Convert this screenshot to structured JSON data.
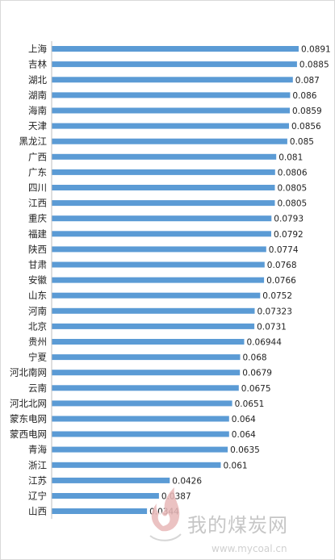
{
  "chart_data": {
    "type": "bar",
    "orientation": "horizontal",
    "categories": [
      "上海",
      "吉林",
      "湖北",
      "湖南",
      "海南",
      "天津",
      "黑龙江",
      "广西",
      "广东",
      "四川",
      "江西",
      "重庆",
      "福建",
      "陕西",
      "甘肃",
      "安徽",
      "山东",
      "河南",
      "北京",
      "贵州",
      "宁夏",
      "河北南网",
      "云南",
      "河北北网",
      "蒙东电网",
      "蒙西电网",
      "青海",
      "浙江",
      "江苏",
      "辽宁",
      "山西"
    ],
    "values": [
      0.0891,
      0.0885,
      0.087,
      0.086,
      0.0859,
      0.0856,
      0.085,
      0.081,
      0.0806,
      0.0805,
      0.0805,
      0.0793,
      0.0792,
      0.0774,
      0.0768,
      0.0766,
      0.0752,
      0.07323,
      0.0731,
      0.06944,
      0.068,
      0.0679,
      0.0675,
      0.0651,
      0.064,
      0.064,
      0.0635,
      0.061,
      0.0426,
      0.0387,
      0.0344
    ],
    "value_labels": [
      "0.0891",
      "0.0885",
      "0.087",
      "0.086",
      "0.0859",
      "0.0856",
      "0.085",
      "0.081",
      "0.0806",
      "0.0805",
      "0.0805",
      "0.0793",
      "0.0792",
      "0.0774",
      "0.0768",
      "0.0766",
      "0.0752",
      "0.07323",
      "0.0731",
      "0.06944",
      "0.068",
      "0.0679",
      "0.0675",
      "0.0651",
      "0.064",
      "0.064",
      "0.0635",
      "0.061",
      "0.0426",
      "0.0387",
      "0.0344"
    ],
    "xlim": [
      0,
      0.0891
    ],
    "bar_color": "#5b9bd5",
    "axis_color": "#bfbfbf",
    "grid": false,
    "title": "",
    "xlabel": "",
    "ylabel": ""
  },
  "watermark": {
    "text": "我的煤炭网",
    "url": "www.mycoal.cn"
  }
}
